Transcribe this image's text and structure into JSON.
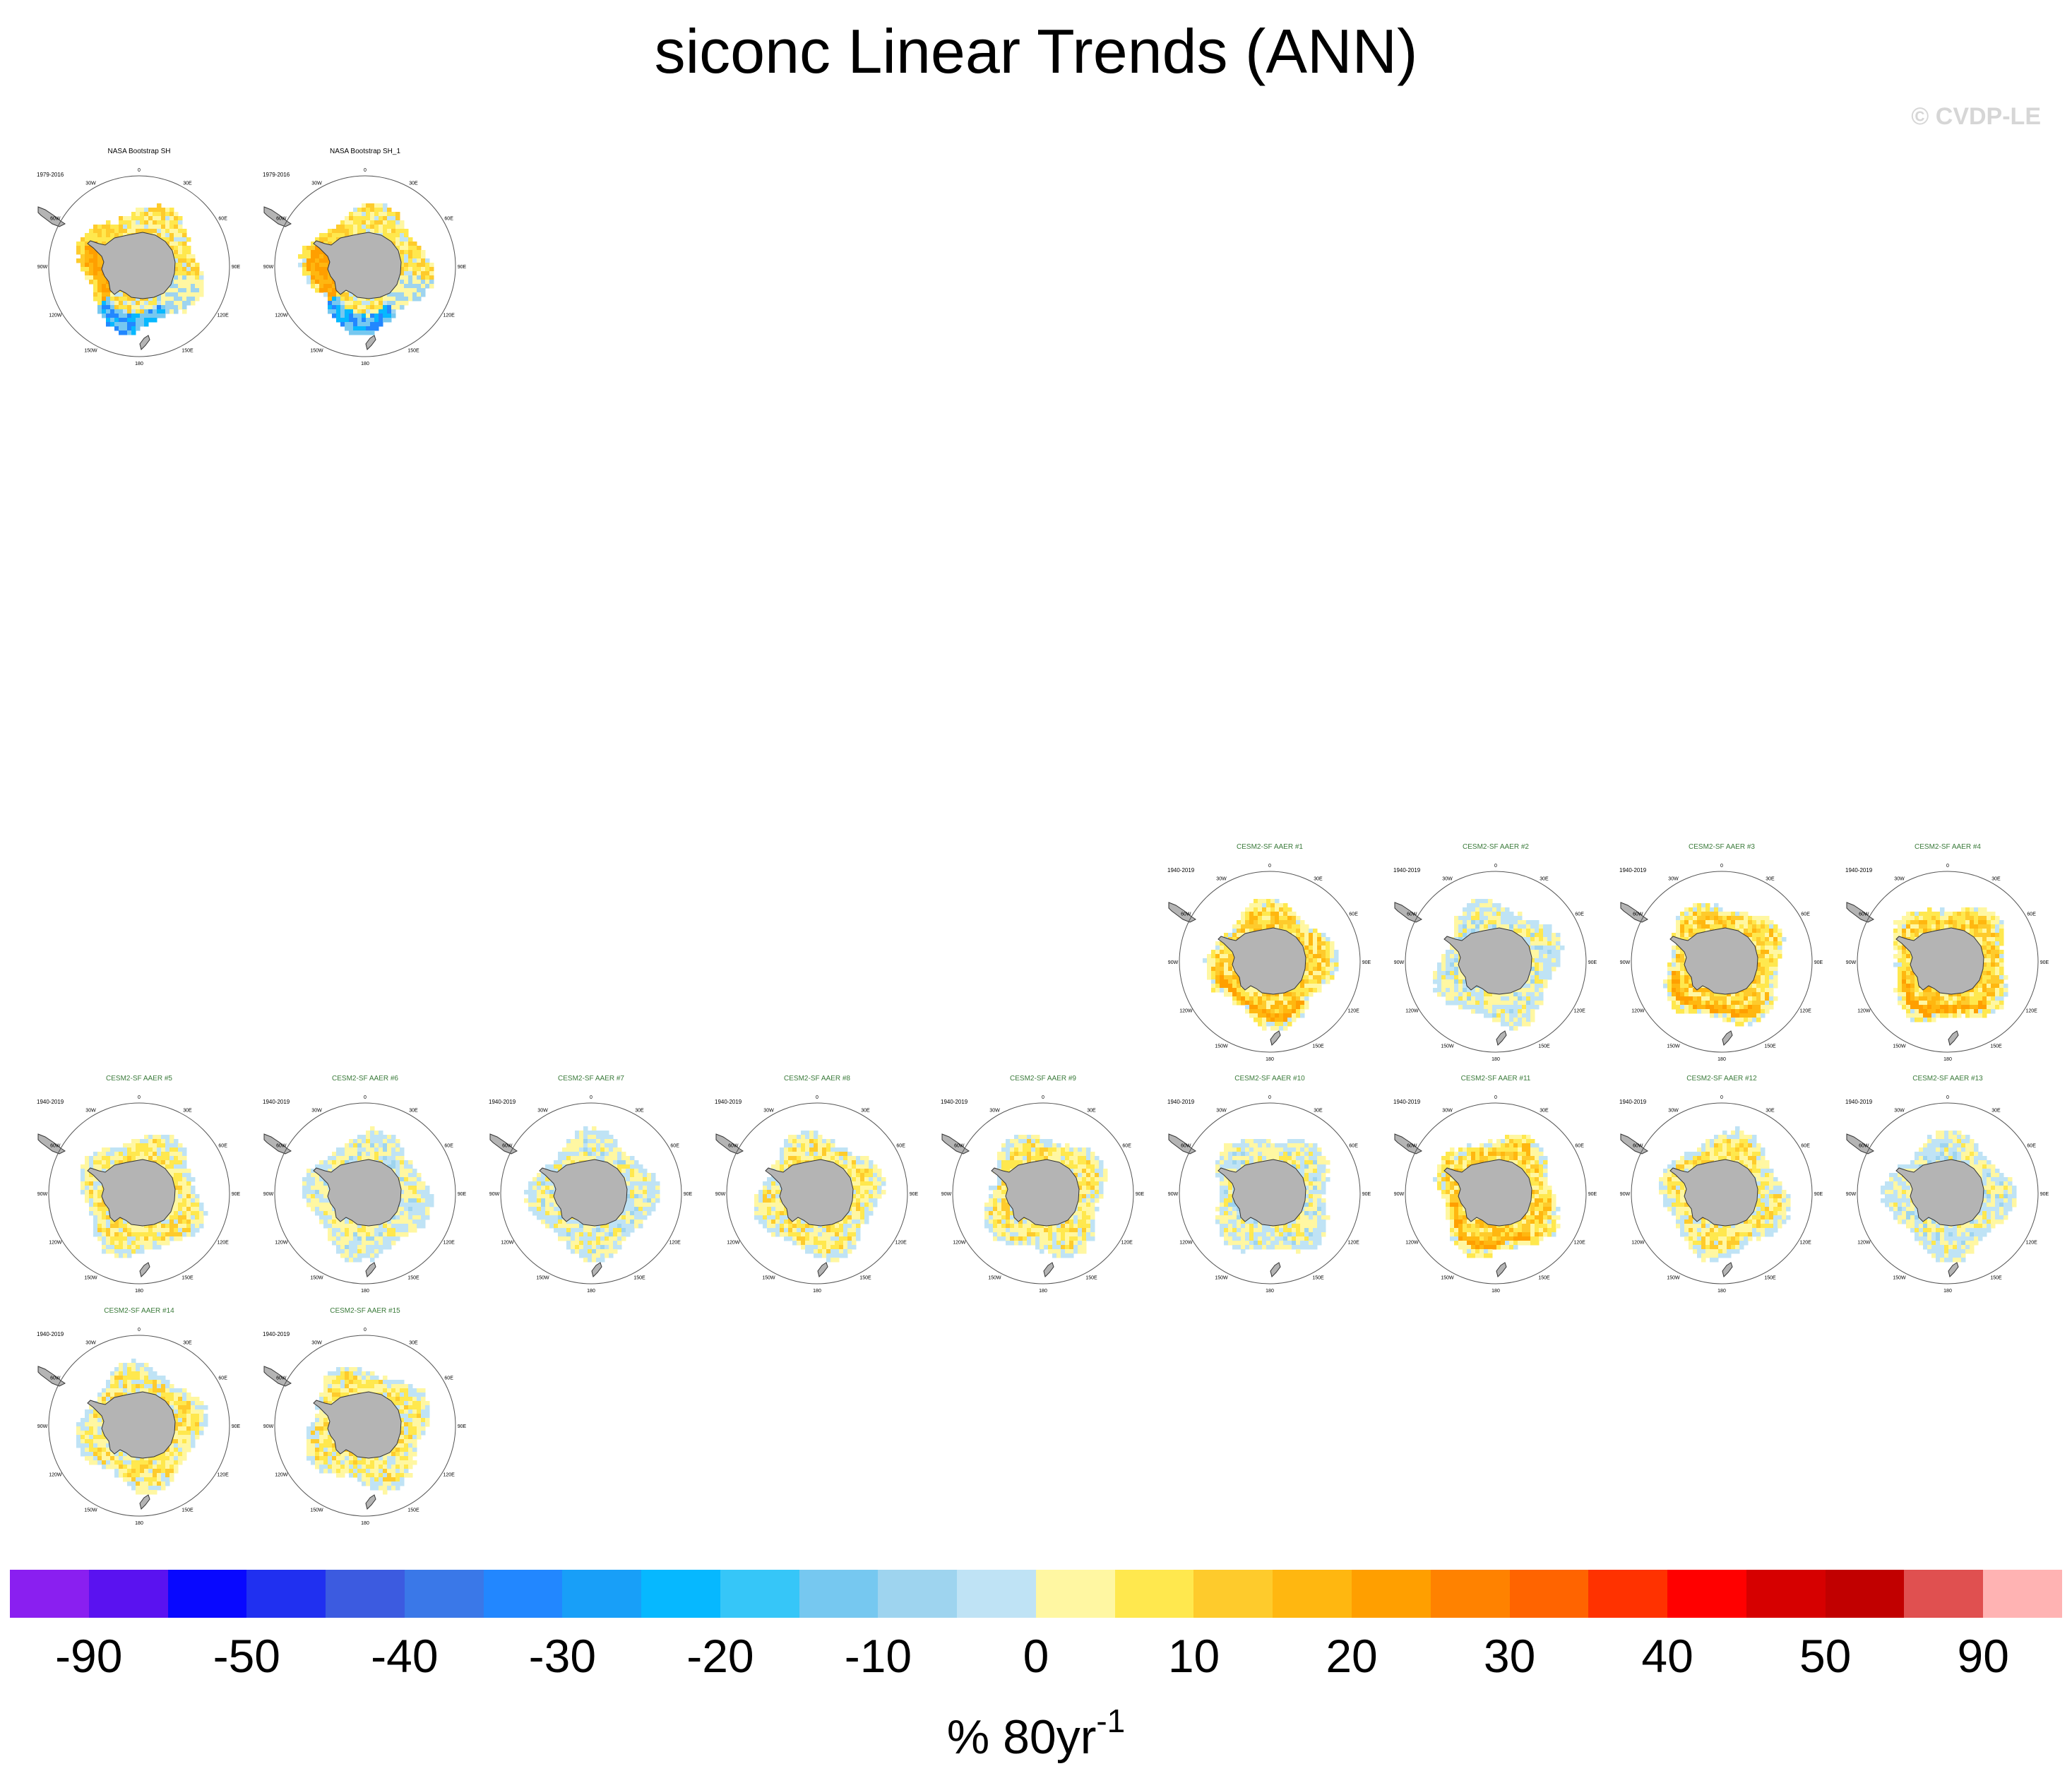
{
  "title": "siconc Linear Trends (ANN)",
  "copyright": "© CVDP-LE",
  "map_labels": {
    "lon_labels": [
      "0",
      "30E",
      "60E",
      "90E",
      "120E",
      "150E",
      "180",
      "150W",
      "120W",
      "90W",
      "60W",
      "30W"
    ]
  },
  "panels": [
    {
      "title": "NASA Bootstrap SH",
      "period": "1979-2016",
      "title_color": "#000000",
      "pattern": "obs"
    },
    {
      "title": "NASA Bootstrap SH_1",
      "period": "1979-2016",
      "title_color": "#000000",
      "pattern": "obs"
    },
    {
      "title": "CESM2-SF AAER #1",
      "period": "1940-2019",
      "title_color": "#3a7a3a",
      "pattern": "strong"
    },
    {
      "title": "CESM2-SF AAER #2",
      "period": "1940-2019",
      "title_color": "#3a7a3a",
      "pattern": "mixed"
    },
    {
      "title": "CESM2-SF AAER #3",
      "period": "1940-2019",
      "title_color": "#3a7a3a",
      "pattern": "strong"
    },
    {
      "title": "CESM2-SF AAER #4",
      "period": "1940-2019",
      "title_color": "#3a7a3a",
      "pattern": "strong"
    },
    {
      "title": "CESM2-SF AAER #5",
      "period": "1940-2019",
      "title_color": "#3a7a3a",
      "pattern": "moderate"
    },
    {
      "title": "CESM2-SF AAER #6",
      "period": "1940-2019",
      "title_color": "#3a7a3a",
      "pattern": "mixed"
    },
    {
      "title": "CESM2-SF AAER #7",
      "period": "1940-2019",
      "title_color": "#3a7a3a",
      "pattern": "mixed"
    },
    {
      "title": "CESM2-SF AAER #8",
      "period": "1940-2019",
      "title_color": "#3a7a3a",
      "pattern": "moderate"
    },
    {
      "title": "CESM2-SF AAER #9",
      "period": "1940-2019",
      "title_color": "#3a7a3a",
      "pattern": "moderate"
    },
    {
      "title": "CESM2-SF AAER #10",
      "period": "1940-2019",
      "title_color": "#3a7a3a",
      "pattern": "mixed"
    },
    {
      "title": "CESM2-SF AAER #11",
      "period": "1940-2019",
      "title_color": "#3a7a3a",
      "pattern": "strong"
    },
    {
      "title": "CESM2-SF AAER #12",
      "period": "1940-2019",
      "title_color": "#3a7a3a",
      "pattern": "moderate"
    },
    {
      "title": "CESM2-SF AAER #13",
      "period": "1940-2019",
      "title_color": "#3a7a3a",
      "pattern": "mixed"
    },
    {
      "title": "CESM2-SF AAER #14",
      "period": "1940-2019",
      "title_color": "#3a7a3a",
      "pattern": "moderate"
    },
    {
      "title": "CESM2-SF AAER #15",
      "period": "1940-2019",
      "title_color": "#3a7a3a",
      "pattern": "moderate"
    }
  ],
  "colorbar": {
    "colors": [
      "#8a1ff0",
      "#5a12f0",
      "#0808ff",
      "#2030f0",
      "#3c5be0",
      "#3a78e8",
      "#2287ff",
      "#189ff8",
      "#06b8ff",
      "#36c6f8",
      "#76c8f0",
      "#9ed4ef",
      "#bfe3f5",
      "#fff7a2",
      "#ffe84e",
      "#fecb2c",
      "#ffb710",
      "#ff9f00",
      "#ff8200",
      "#ff6400",
      "#ff3200",
      "#ff0000",
      "#d60000",
      "#c10000",
      "#e05050",
      "#ffb3b3"
    ],
    "tick_labels": [
      "-90",
      "-50",
      "-40",
      "-30",
      "-20",
      "-10",
      "0",
      "10",
      "20",
      "30",
      "40",
      "50",
      "90"
    ],
    "units": "% 80yr",
    "units_sup": "-1"
  }
}
